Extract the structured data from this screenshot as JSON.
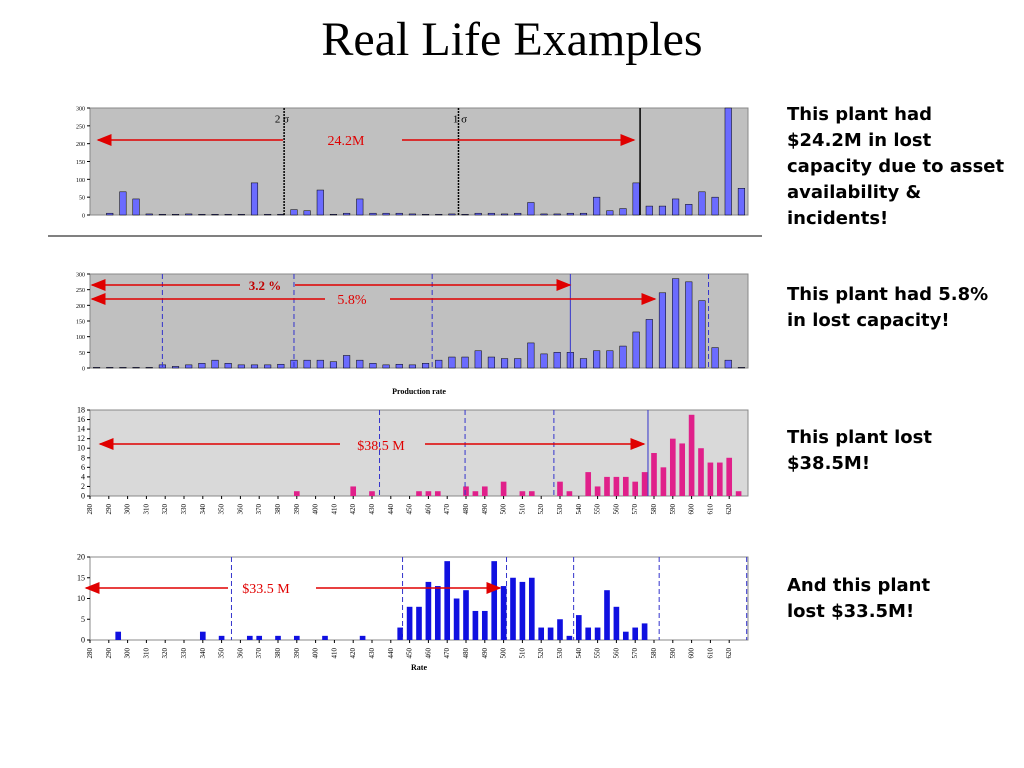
{
  "title": "Real Life Examples",
  "captions": [
    "This plant had $24.2M in lost capacity due to asset availability & incidents!",
    "This plant had 5.8% in lost capacity!",
    "This plant lost $38.5M!",
    "And this plant lost $33.5M!"
  ],
  "chart_data": [
    {
      "type": "bar",
      "color": "#6b6bff",
      "background": "#c0c0c0",
      "values": [
        0,
        5,
        65,
        45,
        3,
        2,
        2,
        3,
        2,
        2,
        2,
        2,
        90,
        2,
        2,
        15,
        12,
        70,
        2,
        5,
        45,
        5,
        5,
        5,
        3,
        2,
        2,
        3,
        2,
        5,
        5,
        3,
        5,
        35,
        3,
        3,
        5,
        5,
        50,
        12,
        18,
        90,
        25,
        25,
        45,
        30,
        65,
        50,
        300,
        75
      ],
      "ylim": [
        0,
        300
      ],
      "yticks": [
        0,
        50,
        100,
        150,
        200,
        250,
        300
      ],
      "annotations": [
        "2 σ",
        "1 σ",
        "24.2M"
      ]
    },
    {
      "type": "bar",
      "color": "#6b6bff",
      "background": "#c0c0c0",
      "values": [
        2,
        2,
        2,
        2,
        2,
        10,
        5,
        10,
        15,
        25,
        15,
        10,
        10,
        10,
        12,
        25,
        25,
        25,
        20,
        40,
        25,
        15,
        10,
        12,
        10,
        15,
        25,
        35,
        35,
        55,
        35,
        30,
        30,
        80,
        45,
        50,
        50,
        30,
        55,
        55,
        70,
        115,
        155,
        240,
        285,
        275,
        215,
        65,
        25,
        2
      ],
      "ylim": [
        0,
        300
      ],
      "yticks": [
        0,
        50,
        100,
        150,
        200,
        250,
        300
      ],
      "annotations": [
        "3.2 %",
        "5.8%"
      ]
    },
    {
      "type": "bar",
      "color": "#e0208a",
      "background": "#d9d9d9",
      "title": "Production rate",
      "x": [
        390,
        420,
        430,
        455,
        460,
        465,
        480,
        485,
        490,
        500,
        510,
        515,
        530,
        535,
        545,
        550,
        555,
        560,
        565,
        570,
        575,
        580,
        585,
        590,
        595,
        600,
        605,
        610,
        615,
        620,
        625
      ],
      "values": [
        1,
        2,
        1,
        1,
        1,
        1,
        2,
        1,
        2,
        3,
        1,
        1,
        3,
        1,
        5,
        2,
        4,
        4,
        4,
        3,
        5,
        9,
        6,
        12,
        11,
        17,
        10,
        7,
        7,
        8,
        1
      ],
      "xlim": [
        280,
        630
      ],
      "xticks": [
        280,
        290,
        300,
        310,
        320,
        330,
        340,
        350,
        360,
        370,
        380,
        390,
        400,
        410,
        420,
        430,
        440,
        450,
        460,
        470,
        480,
        490,
        500,
        510,
        520,
        530,
        540,
        550,
        560,
        570,
        580,
        590,
        600,
        610,
        620
      ],
      "ylim": [
        0,
        18
      ],
      "yticks": [
        0,
        2,
        4,
        6,
        8,
        10,
        12,
        14,
        16,
        18
      ],
      "annotations": [
        "$38.5 M"
      ]
    },
    {
      "type": "bar",
      "color": "#1010e0",
      "background": "#ffffff",
      "xlabel": "Rate",
      "x": [
        295,
        340,
        350,
        365,
        370,
        380,
        390,
        405,
        425,
        445,
        450,
        455,
        460,
        465,
        470,
        475,
        480,
        485,
        490,
        495,
        500,
        505,
        510,
        515,
        520,
        525,
        530,
        535,
        540,
        545,
        550,
        555,
        560,
        565,
        570,
        575
      ],
      "values": [
        2,
        2,
        1,
        1,
        1,
        1,
        1,
        1,
        1,
        3,
        8,
        8,
        14,
        13,
        19,
        10,
        12,
        7,
        7,
        19,
        13,
        15,
        14,
        15,
        3,
        3,
        5,
        1,
        6,
        3,
        3,
        12,
        8,
        2,
        3,
        4
      ],
      "xlim": [
        280,
        630
      ],
      "xticks": [
        280,
        290,
        300,
        310,
        320,
        330,
        340,
        350,
        360,
        370,
        380,
        390,
        400,
        410,
        420,
        430,
        440,
        450,
        460,
        470,
        480,
        490,
        500,
        510,
        520,
        530,
        540,
        550,
        560,
        570,
        580,
        590,
        600,
        610,
        620
      ],
      "ylim": [
        0,
        20
      ],
      "yticks": [
        0,
        5,
        10,
        15,
        20
      ],
      "annotations": [
        "$33.5 M"
      ]
    }
  ]
}
